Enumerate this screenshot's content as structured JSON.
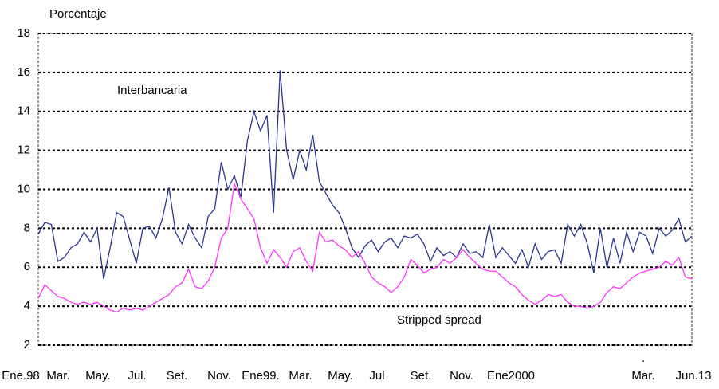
{
  "chart_data": {
    "type": "line",
    "ylabel": "Porcentaje",
    "ylim": [
      2,
      18
    ],
    "yticks": [
      2,
      4,
      6,
      8,
      10,
      12,
      14,
      16,
      18
    ],
    "grid": true,
    "xtick_labels": [
      "Ene.98",
      "Mar.",
      "May.",
      "Jul.",
      "Set.",
      "Nov.",
      "Ene99.",
      "Mar.",
      "May.",
      "Jul",
      "Set.",
      "Nov.",
      "Ene2000",
      "Mar.",
      "Jun.13"
    ],
    "annotations": [
      "Interbancaria",
      "Stripped spread",
      "."
    ],
    "series": [
      {
        "name": "Interbancaria",
        "color": "#2b3590",
        "values": [
          7.7,
          8.3,
          8.2,
          6.3,
          6.5,
          7.0,
          7.2,
          7.8,
          7.3,
          8.0,
          5.4,
          7.0,
          8.8,
          8.6,
          7.4,
          6.2,
          8.0,
          8.1,
          7.5,
          8.5,
          10.1,
          7.8,
          7.2,
          8.2,
          7.5,
          7.0,
          8.6,
          9.0,
          11.4,
          10.0,
          10.7,
          9.6,
          12.5,
          14.0,
          13.0,
          13.8,
          8.8,
          16.1,
          12.0,
          10.5,
          12.0,
          11.0,
          12.8,
          10.4,
          9.8,
          9.2,
          8.8,
          8.0,
          7.0,
          6.5,
          7.1,
          7.4,
          6.8,
          7.3,
          7.5,
          7.0,
          7.6,
          7.5,
          7.7,
          7.2,
          6.3,
          7.0,
          6.6,
          6.8,
          6.5,
          7.2,
          6.7,
          6.8,
          6.5,
          8.2,
          6.5,
          7.0,
          6.6,
          6.2,
          6.9,
          6.0,
          7.2,
          6.4,
          6.8,
          6.9,
          6.2,
          8.2,
          7.6,
          8.2,
          7.2,
          5.7,
          8.0,
          6.0,
          7.5,
          6.2,
          7.8,
          6.8,
          7.8,
          7.6,
          6.7,
          8.0,
          7.6,
          7.9,
          8.5,
          7.3,
          7.6
        ]
      },
      {
        "name": "Stripped spread",
        "color": "#ff33ff",
        "values": [
          4.4,
          5.1,
          4.8,
          4.5,
          4.4,
          4.2,
          4.1,
          4.2,
          4.1,
          4.2,
          4.0,
          3.8,
          3.7,
          3.9,
          3.8,
          3.9,
          3.8,
          4.0,
          4.2,
          4.4,
          4.6,
          5.0,
          5.2,
          5.9,
          5.0,
          4.9,
          5.3,
          6.0,
          7.5,
          8.0,
          10.3,
          9.5,
          9.0,
          8.5,
          7.0,
          6.2,
          6.9,
          6.5,
          6.0,
          6.8,
          7.0,
          6.3,
          5.8,
          7.8,
          7.3,
          7.4,
          7.1,
          6.9,
          6.5,
          6.8,
          6.2,
          5.5,
          5.2,
          5.0,
          4.7,
          5.0,
          5.5,
          6.4,
          6.1,
          5.7,
          5.9,
          6.0,
          6.4,
          6.2,
          6.5,
          6.9,
          6.5,
          6.2,
          5.9,
          5.8,
          5.8,
          5.5,
          5.2,
          5.0,
          4.6,
          4.3,
          4.1,
          4.3,
          4.6,
          4.5,
          4.6,
          4.2,
          4.0,
          4.0,
          3.9,
          4.0,
          4.2,
          4.7,
          5.0,
          4.9,
          5.2,
          5.5,
          5.7,
          5.8,
          5.9,
          6.0,
          6.3,
          6.1,
          6.5,
          5.5,
          5.4
        ]
      }
    ]
  }
}
